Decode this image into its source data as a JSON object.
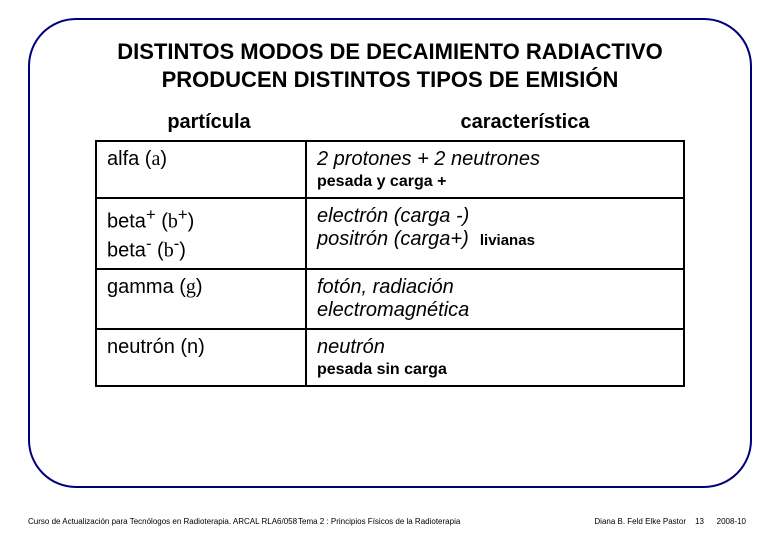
{
  "title_line1": "DISTINTOS MODOS DE DECAIMIENTO RADIACTIVO",
  "title_line2": "PRODUCEN DISTINTOS TIPOS DE EMISIÓN",
  "header_left": "partícula",
  "header_right": "característica",
  "rows": {
    "r1": {
      "p_pre": "alfa (",
      "p_sym": "a",
      "p_post": ")",
      "c_main": "2 protones + 2 neutrones",
      "c_sub": "pesada y carga +"
    },
    "r2": {
      "p1_pre": "beta",
      "p1_sup": "+",
      "p1_mid": " (",
      "p1_sym": "b",
      "p1_sup2": "+",
      "p1_post": ")",
      "p2_pre": "beta",
      "p2_sup": "-",
      "p2_mid": " (",
      "p2_sym": "b",
      "p2_sup2": "-",
      "p2_post": ")",
      "c_l1": "electrón (carga -)",
      "c_l2a": "positrón (carga+)",
      "c_liv": "livianas"
    },
    "r3": {
      "p_pre": "gamma (",
      "p_sym": "g",
      "p_post": ")",
      "c_l1": "fotón, radiación",
      "c_l2": "electromagnética"
    },
    "r4": {
      "p": "neutrón (n)",
      "c_main": "neutrón",
      "c_sub": "pesada sin carga"
    }
  },
  "footer": {
    "left": "Curso de Actualización para Tecnólogos en Radioterapia.  ARCAL RLA6/058",
    "mid": "Tema 2 : Principios Físicos de la Radioterapia",
    "authors": "Diana B. Feld    Elke Pastor",
    "page": "13",
    "year": "2008-10"
  },
  "colors": {
    "frame_border": "#00007a",
    "text": "#000000",
    "table_border": "#000000",
    "background": "#ffffff"
  }
}
